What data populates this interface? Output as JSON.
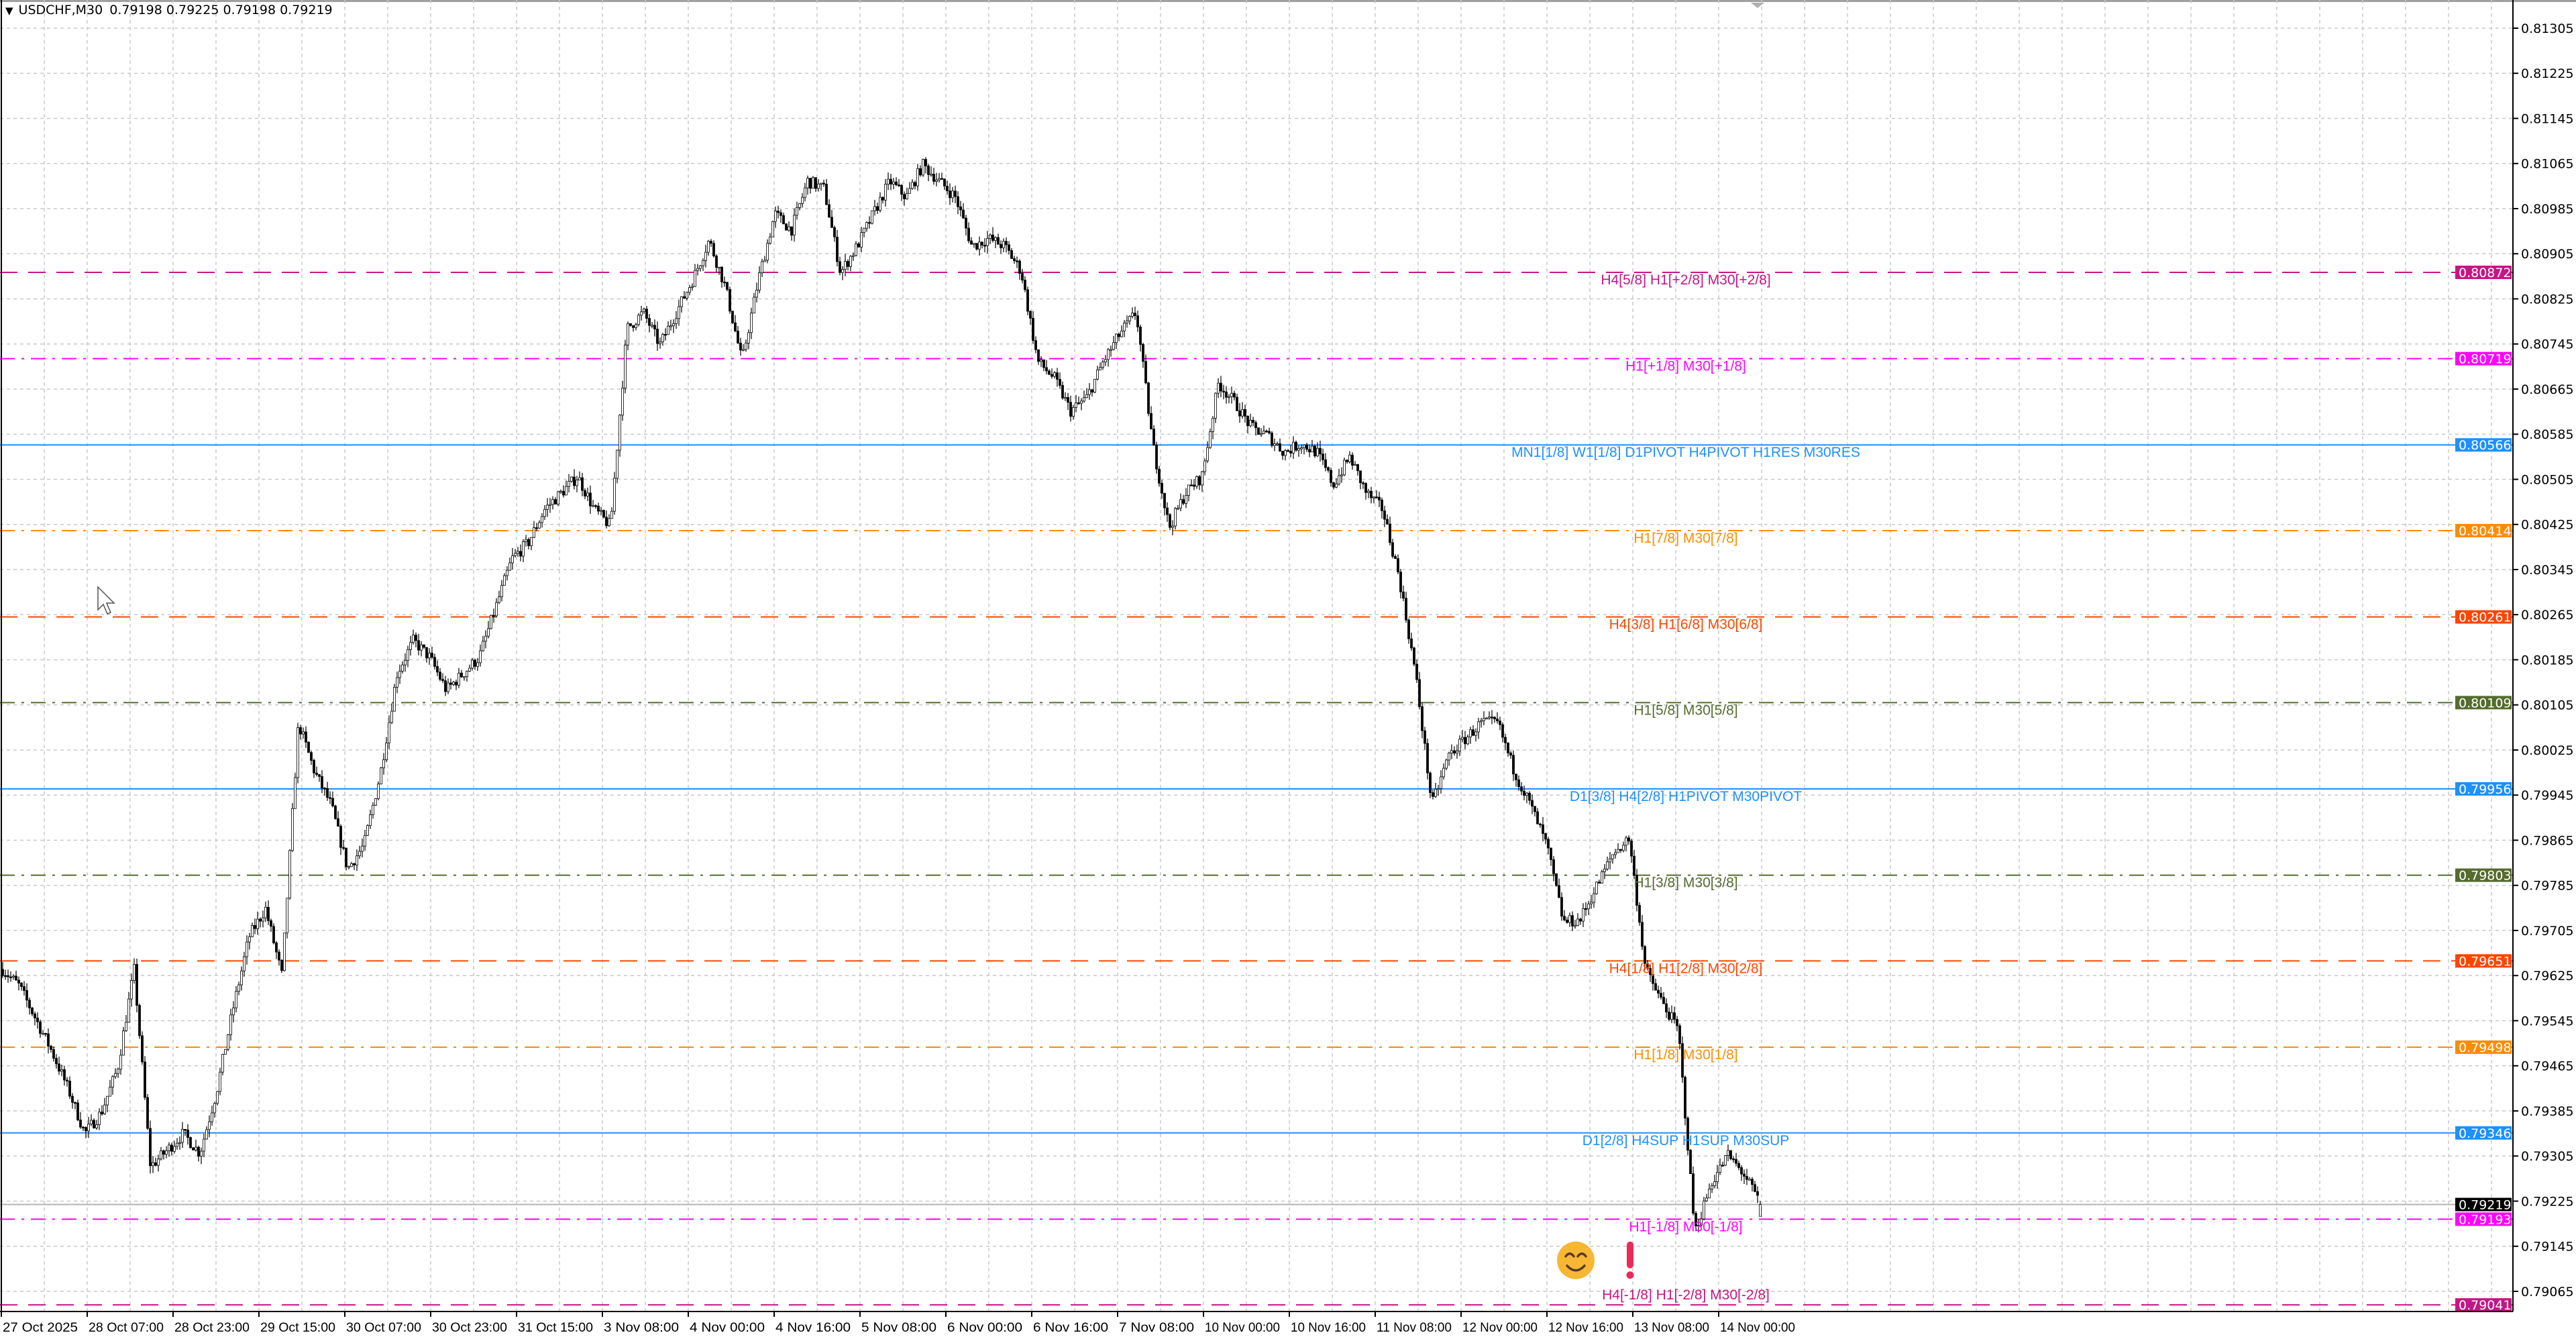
{
  "header": {
    "menu_icon": "triangle-down-icon",
    "symbol": "USDCHF,M30",
    "ohlc": "0.79198 0.79225 0.79198 0.79219"
  },
  "chart_data": {
    "type": "candlestick",
    "symbol": "USDCHF",
    "timeframe": "M30",
    "last_bar": {
      "open": 0.79198,
      "high": 0.79225,
      "low": 0.79198,
      "close": 0.79219
    },
    "current_price": 0.79219,
    "ylim": [
      0.79041,
      0.8132
    ],
    "grid": true,
    "price_ticks": [
      0.81305,
      0.81225,
      0.81145,
      0.81065,
      0.80985,
      0.80905,
      0.80825,
      0.80745,
      0.80665,
      0.80585,
      0.80505,
      0.80425,
      0.80345,
      0.80265,
      0.80185,
      0.80105,
      0.80025,
      0.79945,
      0.79865,
      0.79785,
      0.79705,
      0.79625,
      0.79545,
      0.79465,
      0.79385,
      0.79305,
      0.79225,
      0.79145,
      0.79065
    ],
    "time_labels": [
      "27 Oct 2025",
      "28 Oct 07:00",
      "28 Oct 23:00",
      "29 Oct 15:00",
      "30 Oct 07:00",
      "30 Oct 23:00",
      "31 Oct 15:00",
      "3 Nov 08:00",
      "4 Nov 00:00",
      "4 Nov 16:00",
      "5 Nov 08:00",
      "6 Nov 00:00",
      "6 Nov 16:00",
      "7 Nov 08:00",
      "10 Nov 00:00",
      "10 Nov 16:00",
      "11 Nov 08:00",
      "12 Nov 00:00",
      "12 Nov 16:00",
      "13 Nov 08:00",
      "14 Nov 00:00"
    ],
    "close_path_approx": [
      0.79636,
      0.79607,
      0.79549,
      0.7949,
      0.79423,
      0.79345,
      0.79382,
      0.79461,
      0.79636,
      0.79286,
      0.79315,
      0.79345,
      0.7931,
      0.79417,
      0.79563,
      0.79694,
      0.79744,
      0.79624,
      0.80073,
      0.79985,
      0.79927,
      0.79814,
      0.79857,
      0.79985,
      0.8016,
      0.80219,
      0.80189,
      0.80131,
      0.8016,
      0.80189,
      0.80277,
      0.80364,
      0.80393,
      0.80452,
      0.80481,
      0.8051,
      0.80452,
      0.80422,
      0.80772,
      0.80801,
      0.80743,
      0.80801,
      0.80859,
      0.80929,
      0.80845,
      0.80714,
      0.80859,
      0.80976,
      0.80947,
      0.81034,
      0.8102,
      0.80871,
      0.80918,
      0.80976,
      0.81034,
      0.81005,
      0.81063,
      0.81034,
      0.81005,
      0.80918,
      0.80932,
      0.80918,
      0.80874,
      0.80714,
      0.80685,
      0.80626,
      0.8065,
      0.80714,
      0.80763,
      0.80801,
      0.80568,
      0.80419,
      0.80481,
      0.8051,
      0.80676,
      0.80641,
      0.80597,
      0.80583,
      0.80553,
      0.80568,
      0.80553,
      0.80495,
      0.80545,
      0.80481,
      0.80452,
      0.80332,
      0.8016,
      0.79927,
      0.80015,
      0.80044,
      0.80073,
      0.80073,
      0.79988,
      0.79927,
      0.79854,
      0.7972,
      0.79723,
      0.79782,
      0.7984,
      0.79869,
      0.79636,
      0.79578,
      0.79528,
      0.7917,
      0.79257,
      0.79307,
      0.79272,
      0.79219
    ],
    "bull_color": "#ffffff",
    "bear_color": "#000000",
    "levels": [
      {
        "price": 0.80872,
        "label": "H4[5/8] H1[+2/8] M30[+2/8]",
        "color": "#c71585",
        "style": "dashed"
      },
      {
        "price": 0.80719,
        "label": "H1[+1/8] M30[+1/8]",
        "color": "#ff00ff",
        "style": "dashdot"
      },
      {
        "price": 0.80566,
        "label": "MN1[1/8] W1[1/8] D1PIVOT H4PIVOT H1RES M30RES",
        "color": "#1e90ff",
        "style": "solid"
      },
      {
        "price": 0.80414,
        "label": "H1[7/8] M30[7/8]",
        "color": "#ff8c00",
        "style": "dashdot"
      },
      {
        "price": 0.80261,
        "label": "H4[3/8] H1[6/8] M30[6/8]",
        "color": "#ff4500",
        "style": "dashed"
      },
      {
        "price": 0.80109,
        "label": "H1[5/8] M30[5/8]",
        "color": "#556b2f",
        "style": "dashdot"
      },
      {
        "price": 0.79956,
        "label": "D1[3/8] H4[2/8] H1PIVOT M30PIVOT",
        "color": "#1e90ff",
        "style": "solid"
      },
      {
        "price": 0.79803,
        "label": "H1[3/8] M30[3/8]",
        "color": "#556b2f",
        "style": "dashdot"
      },
      {
        "price": 0.79651,
        "label": "H4[1/8] H1[2/8] M30[2/8]",
        "color": "#ff4500",
        "style": "dashed"
      },
      {
        "price": 0.79498,
        "label": "H1[1/8] M30[1/8]",
        "color": "#ff8c00",
        "style": "dashdot"
      },
      {
        "price": 0.79346,
        "label": "D1[2/8] H4SUP H1SUP M30SUP",
        "color": "#1e90ff",
        "style": "solid"
      },
      {
        "price": 0.79193,
        "label": "H1[-1/8] M30[-1/8]",
        "color": "#ff00ff",
        "style": "dashdot"
      },
      {
        "price": 0.79041,
        "label": "H4[-1/8] H1[-2/8] M30[-2/8]",
        "color": "#c71585",
        "style": "dashed"
      }
    ],
    "price_badges": [
      {
        "price": 0.80872,
        "text": "0.80872",
        "color": "#c71585"
      },
      {
        "price": 0.80719,
        "text": "0.80719",
        "color": "#ff00ff"
      },
      {
        "price": 0.80566,
        "text": "0.80566",
        "color": "#1e90ff"
      },
      {
        "price": 0.80414,
        "text": "0.80414",
        "color": "#ff8c00"
      },
      {
        "price": 0.80261,
        "text": "0.80261",
        "color": "#ff4500"
      },
      {
        "price": 0.80109,
        "text": "0.80109",
        "color": "#556b2f"
      },
      {
        "price": 0.79956,
        "text": "0.79956",
        "color": "#1e90ff"
      },
      {
        "price": 0.79803,
        "text": "0.79803",
        "color": "#556b2f"
      },
      {
        "price": 0.79651,
        "text": "0.79651",
        "color": "#ff4500"
      },
      {
        "price": 0.79498,
        "text": "0.79498",
        "color": "#ff8c00"
      },
      {
        "price": 0.79346,
        "text": "0.79346",
        "color": "#1e90ff"
      },
      {
        "price": 0.79219,
        "text": "0.79219",
        "color": "#000000"
      },
      {
        "price": 0.79193,
        "text": "0.79193",
        "color": "#ff00ff"
      },
      {
        "price": 0.79041,
        "text": "0.79041",
        "color": "#c71585"
      }
    ],
    "markers": [
      {
        "icon": "smiling-face-emoji-icon",
        "price": 0.7912
      },
      {
        "icon": "exclamation-mark-icon",
        "price": 0.7912
      }
    ]
  }
}
